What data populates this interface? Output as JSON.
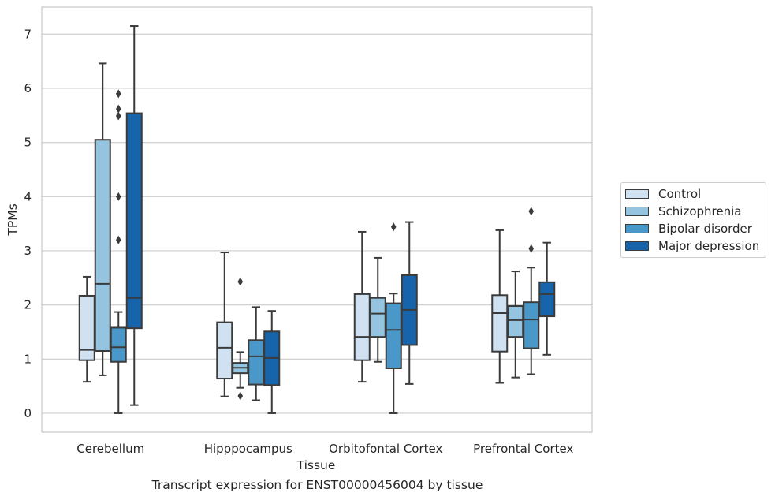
{
  "caption": "Transcript expression for ENST00000456004 by tissue",
  "colors": {
    "Control": "#d0e1f2",
    "Schizophrenia": "#94c4df",
    "Bipolar disorder": "#4a98c9",
    "Major depression": "#1764ab",
    "grid": "#cccccc",
    "axes_edge": "#cccccc",
    "box_edge": "#3b3b3b"
  },
  "legend": {
    "placement": "right-center",
    "items": [
      {
        "label": "Control",
        "color": "#d0e1f2"
      },
      {
        "label": "Schizophrenia",
        "color": "#94c4df"
      },
      {
        "label": "Bipolar disorder",
        "color": "#4a98c9"
      },
      {
        "label": "Major depression",
        "color": "#1764ab"
      }
    ]
  },
  "chart_data": {
    "type": "box",
    "xlabel": "Tissue",
    "ylabel": "TPMs",
    "ylim": [
      -0.35,
      7.5
    ],
    "yticks": [
      0,
      1,
      2,
      3,
      4,
      5,
      6,
      7
    ],
    "grid": true,
    "categories": [
      "Cerebellum",
      "Hipppocampus",
      "Orbitofontal Cortex",
      "Prefrontal Cortex"
    ],
    "series": [
      {
        "name": "Control",
        "boxes": [
          {
            "whisker_low": 0.58,
            "q1": 0.98,
            "median": 1.17,
            "q3": 2.17,
            "whisker_high": 2.52,
            "outliers": []
          },
          {
            "whisker_low": 0.31,
            "q1": 0.64,
            "median": 1.21,
            "q3": 1.68,
            "whisker_high": 2.97,
            "outliers": []
          },
          {
            "whisker_low": 0.58,
            "q1": 0.98,
            "median": 1.41,
            "q3": 2.2,
            "whisker_high": 3.35,
            "outliers": []
          },
          {
            "whisker_low": 0.56,
            "q1": 1.14,
            "median": 1.85,
            "q3": 2.18,
            "whisker_high": 3.38,
            "outliers": []
          }
        ]
      },
      {
        "name": "Schizophrenia",
        "boxes": [
          {
            "whisker_low": 0.7,
            "q1": 1.15,
            "median": 2.39,
            "q3": 5.05,
            "whisker_high": 6.46,
            "outliers": []
          },
          {
            "whisker_low": 0.47,
            "q1": 0.74,
            "median": 0.84,
            "q3": 0.93,
            "whisker_high": 1.13,
            "outliers": [
              0.32,
              2.43
            ]
          },
          {
            "whisker_low": 0.95,
            "q1": 1.41,
            "median": 1.84,
            "q3": 2.13,
            "whisker_high": 2.87,
            "outliers": []
          },
          {
            "whisker_low": 0.66,
            "q1": 1.41,
            "median": 1.72,
            "q3": 1.98,
            "whisker_high": 2.62,
            "outliers": []
          }
        ]
      },
      {
        "name": "Bipolar disorder",
        "boxes": [
          {
            "whisker_low": 0.0,
            "q1": 0.95,
            "median": 1.22,
            "q3": 1.58,
            "whisker_high": 1.87,
            "outliers": [
              3.2,
              4.0,
              5.49,
              5.62,
              5.9
            ]
          },
          {
            "whisker_low": 0.24,
            "q1": 0.53,
            "median": 1.05,
            "q3": 1.35,
            "whisker_high": 1.96,
            "outliers": []
          },
          {
            "whisker_low": 0.0,
            "q1": 0.83,
            "median": 1.54,
            "q3": 2.03,
            "whisker_high": 2.21,
            "outliers": [
              3.44
            ]
          },
          {
            "whisker_low": 0.72,
            "q1": 1.2,
            "median": 1.73,
            "q3": 2.05,
            "whisker_high": 2.69,
            "outliers": [
              3.04,
              3.73
            ]
          }
        ]
      },
      {
        "name": "Major depression",
        "boxes": [
          {
            "whisker_low": 0.15,
            "q1": 1.57,
            "median": 2.13,
            "q3": 5.54,
            "whisker_high": 7.15,
            "outliers": []
          },
          {
            "whisker_low": 0.0,
            "q1": 0.52,
            "median": 1.02,
            "q3": 1.51,
            "whisker_high": 1.89,
            "outliers": []
          },
          {
            "whisker_low": 0.54,
            "q1": 1.26,
            "median": 1.91,
            "q3": 2.55,
            "whisker_high": 3.53,
            "outliers": []
          },
          {
            "whisker_low": 1.08,
            "q1": 1.79,
            "median": 2.2,
            "q3": 2.42,
            "whisker_high": 3.15,
            "outliers": []
          }
        ]
      }
    ]
  }
}
